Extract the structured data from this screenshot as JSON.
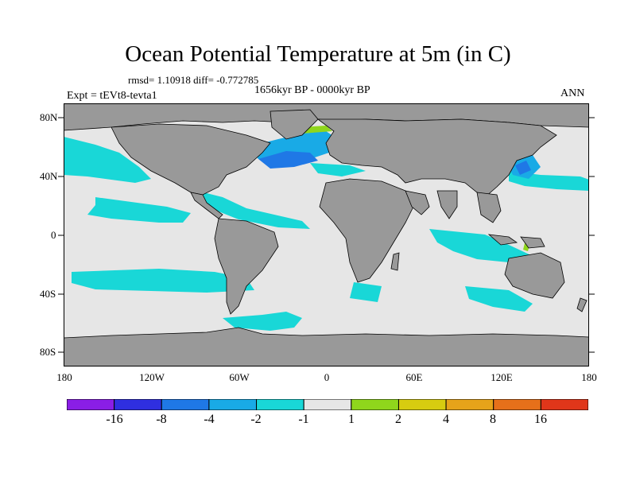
{
  "title": "Ocean Potential Temperature at 5m (in C)",
  "stats_label": "rmsd= 1.10918 diff= -0.772785",
  "period_label": "1656kyr BP - 0000kyr BP",
  "experiment_label": "Expt = tEVt8-tevta1",
  "season_label": "ANN",
  "lat_labels": [
    "80N",
    "40N",
    "0",
    "40S",
    "80S"
  ],
  "lon_labels": [
    "180",
    "120W",
    "60W",
    "0",
    "60E",
    "120E",
    "180"
  ],
  "colorbar": {
    "tick_labels": [
      "-16",
      "-8",
      "-4",
      "-2",
      "-1",
      "1",
      "2",
      "4",
      "8",
      "16"
    ],
    "colors": [
      "#8a1ee6",
      "#2f2fe0",
      "#1f78e6",
      "#19aae6",
      "#19d7d7",
      "#e6e6e6",
      "#8fd61c",
      "#d7cc10",
      "#e6a31a",
      "#e6701a",
      "#e0361a"
    ]
  },
  "map_colors": {
    "land": "#999999",
    "ocean_near_zero": "#e6e6e6",
    "anomaly_minus1_minus2": "#19d7d7",
    "anomaly_minus2_minus4": "#19aae6",
    "anomaly_minus4_minus8": "#1f78e6",
    "anomaly_1_2": "#8fd61c"
  }
}
